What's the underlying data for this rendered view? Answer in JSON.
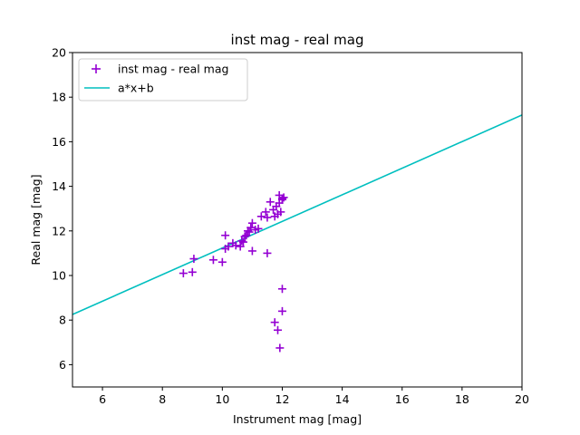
{
  "chart_data": {
    "type": "scatter",
    "title": "inst mag - real mag",
    "xlabel": "Instrument mag [mag]",
    "ylabel": "Real mag [mag]",
    "xlim": [
      5,
      20
    ],
    "ylim": [
      5,
      20
    ],
    "xticks": [
      6,
      8,
      10,
      12,
      14,
      16,
      18,
      20
    ],
    "yticks": [
      6,
      8,
      10,
      12,
      14,
      16,
      18,
      20
    ],
    "grid": false,
    "legend_position": "top-left",
    "series": [
      {
        "name": "inst mag - real mag",
        "kind": "scatter",
        "marker": "plus",
        "color": "#9400d3",
        "points": [
          [
            8.7,
            10.1
          ],
          [
            9.0,
            10.15
          ],
          [
            9.05,
            10.75
          ],
          [
            9.7,
            10.7
          ],
          [
            10.0,
            10.6
          ],
          [
            10.1,
            11.2
          ],
          [
            10.1,
            11.8
          ],
          [
            10.2,
            11.3
          ],
          [
            10.35,
            11.45
          ],
          [
            10.45,
            11.35
          ],
          [
            10.6,
            11.3
          ],
          [
            10.65,
            11.55
          ],
          [
            10.7,
            11.5
          ],
          [
            10.75,
            11.75
          ],
          [
            10.8,
            11.8
          ],
          [
            10.85,
            12.0
          ],
          [
            10.9,
            11.95
          ],
          [
            10.95,
            12.15
          ],
          [
            11.0,
            12.35
          ],
          [
            11.0,
            11.1
          ],
          [
            11.1,
            12.05
          ],
          [
            11.2,
            12.1
          ],
          [
            11.3,
            12.65
          ],
          [
            11.45,
            12.85
          ],
          [
            11.5,
            12.6
          ],
          [
            11.6,
            13.3
          ],
          [
            11.7,
            12.95
          ],
          [
            11.75,
            12.65
          ],
          [
            11.8,
            13.1
          ],
          [
            11.85,
            12.75
          ],
          [
            11.9,
            13.25
          ],
          [
            11.9,
            13.6
          ],
          [
            11.95,
            12.85
          ],
          [
            12.0,
            13.4
          ],
          [
            12.05,
            13.5
          ],
          [
            12.0,
            13.45
          ],
          [
            11.5,
            11.0
          ],
          [
            12.0,
            9.4
          ],
          [
            12.0,
            8.4
          ],
          [
            11.75,
            7.9
          ],
          [
            11.85,
            7.55
          ],
          [
            11.92,
            6.75
          ]
        ]
      },
      {
        "name": "a*x+b",
        "kind": "line",
        "color": "#00bfbf",
        "points": [
          [
            5,
            8.25
          ],
          [
            20,
            17.2
          ]
        ]
      }
    ]
  }
}
